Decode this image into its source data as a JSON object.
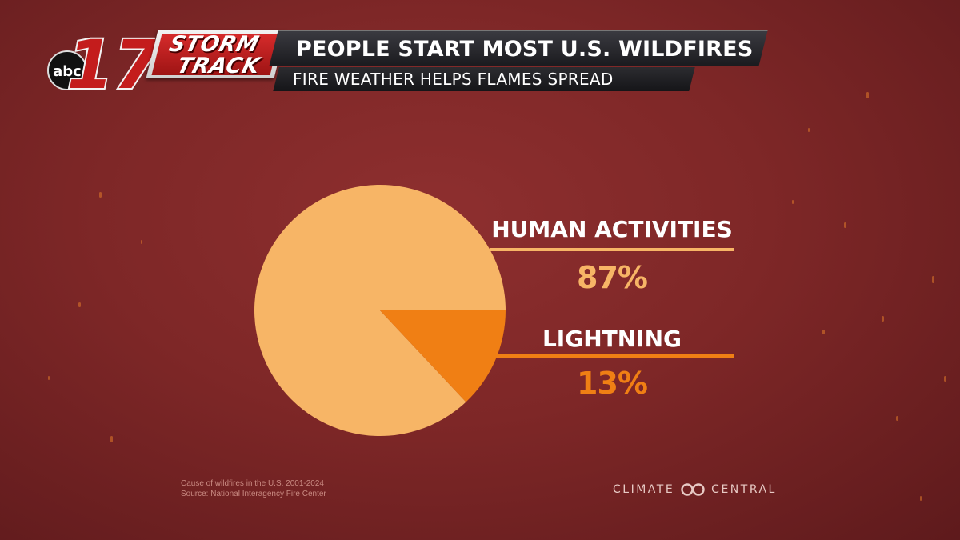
{
  "station": {
    "network": "abc",
    "channel_number": "17",
    "brand_line1": "STORM",
    "brand_line2": "TRACK"
  },
  "title": "PEOPLE START MOST U.S. WILDFIRES",
  "subtitle": "FIRE WEATHER HELPS FLAMES SPREAD",
  "chart_data": {
    "type": "pie",
    "slices": [
      {
        "label": "HUMAN ACTIVITIES",
        "value": 87,
        "display": "87%",
        "color": "#f7b566"
      },
      {
        "label": "LIGHTNING",
        "value": 13,
        "display": "13%",
        "color": "#f07f14"
      }
    ]
  },
  "footnote": {
    "line1": "Cause of wildfires in the U.S. 2001-2024",
    "line2": "Source: National Interagency Fire Center"
  },
  "credit": {
    "left": "CLIMATE",
    "right": "CENTRAL"
  },
  "colors": {
    "background": "#7e2727",
    "human": "#f7b566",
    "lightning": "#f07f14"
  }
}
